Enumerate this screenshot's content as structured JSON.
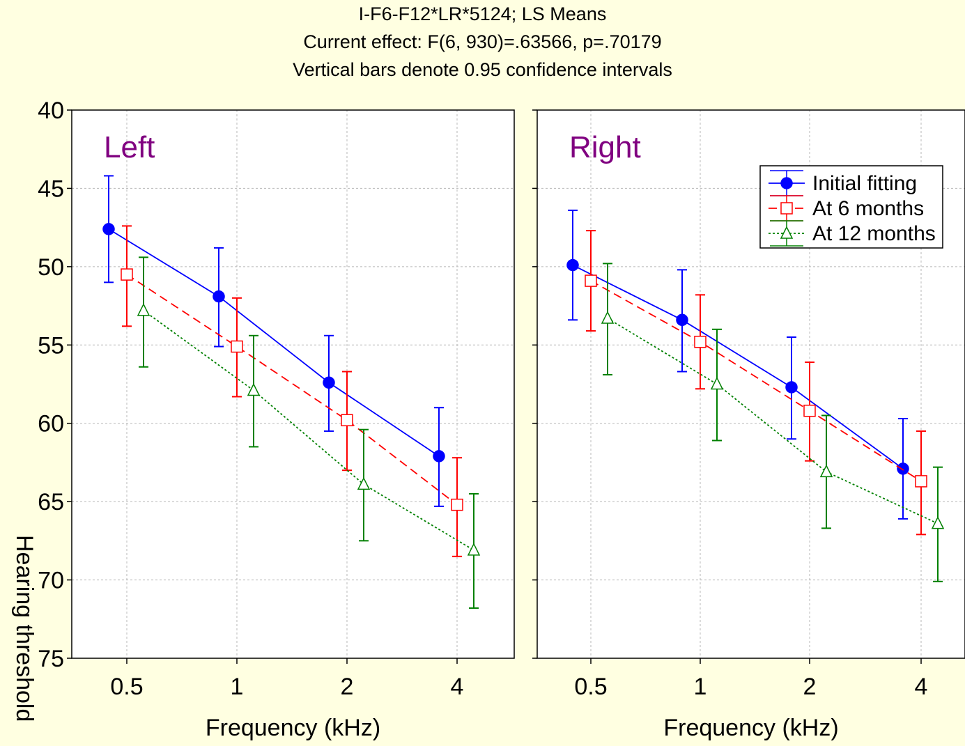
{
  "titles": {
    "line1": "I-F6-F12*LR*5124; LS Means",
    "line2": "Current effect: F(6, 930)=.63566, p=.70179",
    "line3": "Vertical bars denote 0.95 confidence intervals"
  },
  "chart_data": {
    "type": "line",
    "ylabel": "Hearing threshold",
    "ylim": [
      40,
      75
    ],
    "y_inverted": true,
    "yticks": [
      "40",
      "45",
      "50",
      "55",
      "60",
      "65",
      "70",
      "75"
    ],
    "grid": true,
    "legend": {
      "placement": "top-right (Right panel)",
      "entries": [
        "Initial fitting",
        "At 6 months",
        "At 12 months"
      ]
    },
    "colors": {
      "Initial fitting": "#0000FF",
      "At 6 months": "#FF0000",
      "At 12 months": "#008000",
      "panel_title": "#800080"
    },
    "panels": [
      {
        "title": "Left",
        "xlabel": "Frequency (kHz)",
        "categories": [
          "0.5",
          "1",
          "2",
          "4"
        ],
        "series": [
          {
            "name": "Initial fitting",
            "marker": "filled-circle",
            "line": "solid",
            "values": [
              47.6,
              51.9,
              57.4,
              62.1
            ],
            "ci_low": [
              44.2,
              48.8,
              54.4,
              59.0
            ],
            "ci_high": [
              51.0,
              55.1,
              60.5,
              65.3
            ]
          },
          {
            "name": "At 6 months",
            "marker": "open-square",
            "line": "dashed",
            "values": [
              50.5,
              55.1,
              59.8,
              65.2
            ],
            "ci_low": [
              47.4,
              52.0,
              56.7,
              62.2
            ],
            "ci_high": [
              53.8,
              58.3,
              63.0,
              68.5
            ]
          },
          {
            "name": "At 12 months",
            "marker": "open-triangle",
            "line": "dotted",
            "values": [
              52.8,
              57.9,
              63.9,
              68.1
            ],
            "ci_low": [
              49.4,
              54.4,
              60.4,
              64.5
            ],
            "ci_high": [
              56.4,
              61.5,
              67.5,
              71.8
            ]
          }
        ]
      },
      {
        "title": "Right",
        "xlabel": "Frequency (kHz)",
        "categories": [
          "0.5",
          "1",
          "2",
          "4"
        ],
        "series": [
          {
            "name": "Initial fitting",
            "marker": "filled-circle",
            "line": "solid",
            "values": [
              49.9,
              53.4,
              57.7,
              62.9
            ],
            "ci_low": [
              46.4,
              50.2,
              54.5,
              59.7
            ],
            "ci_high": [
              53.4,
              56.7,
              61.0,
              66.1
            ]
          },
          {
            "name": "At 6 months",
            "marker": "open-square",
            "line": "dashed",
            "values": [
              50.9,
              54.8,
              59.2,
              63.7
            ],
            "ci_low": [
              47.7,
              51.8,
              56.1,
              60.5
            ],
            "ci_high": [
              54.1,
              57.8,
              62.4,
              67.1
            ]
          },
          {
            "name": "At 12 months",
            "marker": "open-triangle",
            "line": "dotted",
            "values": [
              53.3,
              57.5,
              63.1,
              66.4
            ],
            "ci_low": [
              49.8,
              54.0,
              59.5,
              62.8
            ],
            "ci_high": [
              56.9,
              61.1,
              66.7,
              70.1
            ]
          }
        ]
      }
    ]
  }
}
